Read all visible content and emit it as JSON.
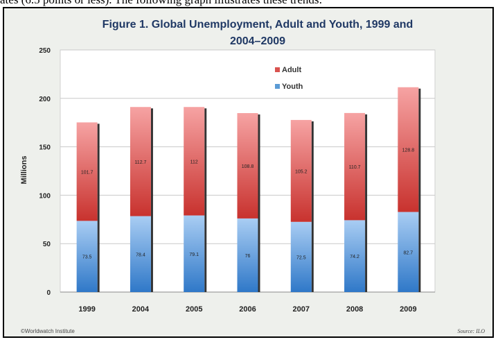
{
  "top_text": "ates (6.5 points or less). The following graph illustrates these trends:",
  "chart_data": {
    "type": "bar",
    "stacked": true,
    "title_lines": [
      "Figure 1. Global Unemployment, Adult and Youth, 1999 and",
      "2004–2009"
    ],
    "categories": [
      "1999",
      "2004",
      "2005",
      "2006",
      "2007",
      "2008",
      "2009"
    ],
    "series": [
      {
        "name": "Youth",
        "values": [
          73.5,
          78.4,
          79.1,
          76,
          72.5,
          74.2,
          82.7
        ],
        "color": "#5b9bd5"
      },
      {
        "name": "Adult",
        "values": [
          101.7,
          112.7,
          112,
          108.8,
          105.2,
          110.7,
          128.8
        ],
        "color": "#d9534f"
      }
    ],
    "ylabel": "Millions",
    "ylim": [
      0,
      250
    ],
    "yticks": [
      "0",
      "50",
      "100",
      "150",
      "200",
      "250"
    ],
    "legend_position": "top-center",
    "grid": true
  },
  "footer": {
    "left": "©Worldwatch Institute",
    "right": "Source: ILO"
  },
  "colors": {
    "frame_bg": "#eef0ec",
    "plot_bg": "#ffffff",
    "title": "#1f3864"
  }
}
